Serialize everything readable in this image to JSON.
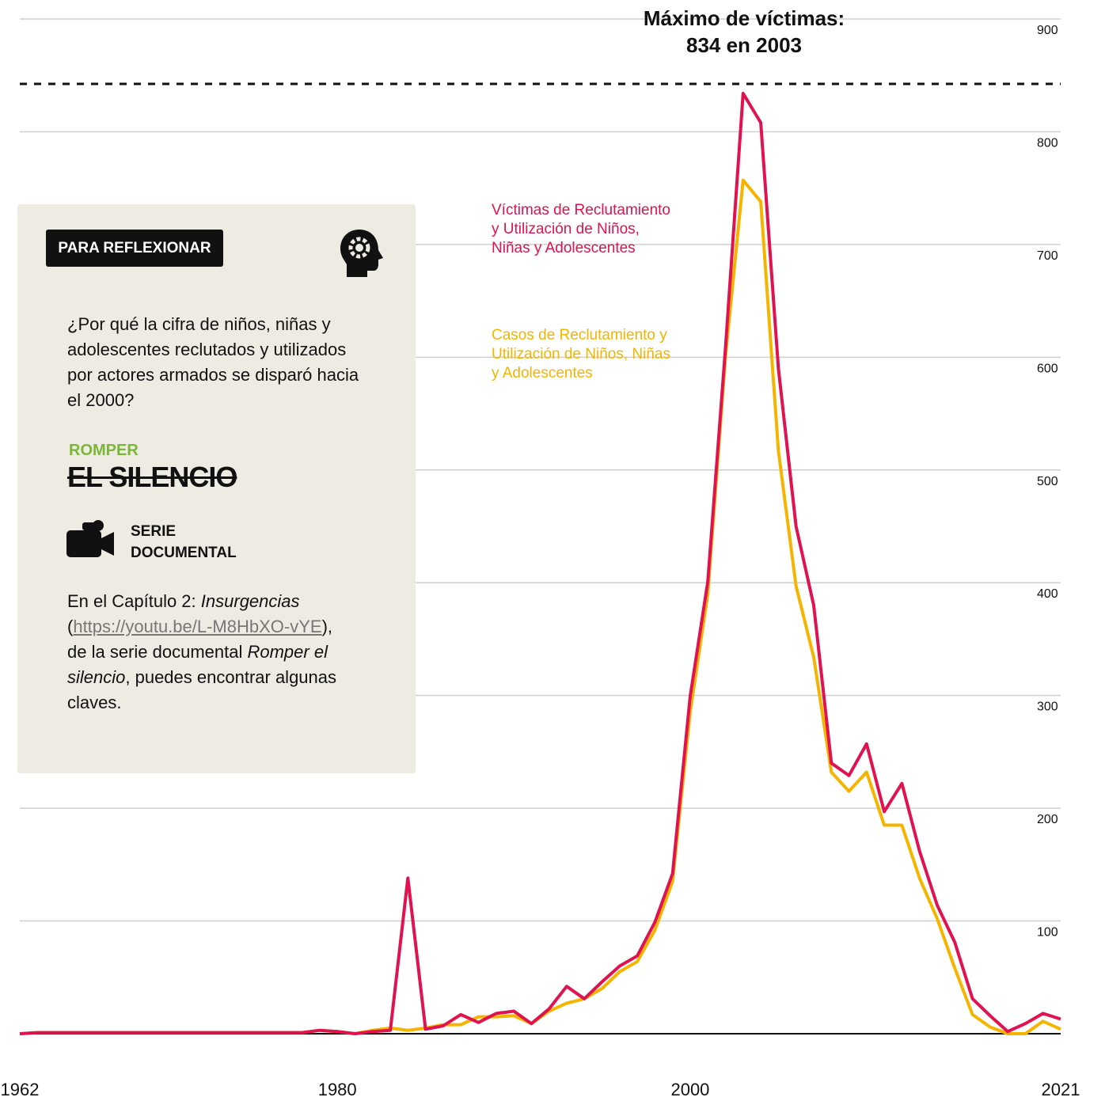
{
  "chart_data": {
    "type": "line",
    "annotation": "Máximo de víctimas: 834 en 2003",
    "x": [
      1962,
      1963,
      1964,
      1965,
      1966,
      1967,
      1968,
      1969,
      1970,
      1971,
      1972,
      1973,
      1974,
      1975,
      1976,
      1977,
      1978,
      1979,
      1980,
      1981,
      1982,
      1983,
      1984,
      1985,
      1986,
      1987,
      1988,
      1989,
      1990,
      1991,
      1992,
      1993,
      1994,
      1995,
      1996,
      1997,
      1998,
      1999,
      2000,
      2001,
      2002,
      2003,
      2004,
      2005,
      2006,
      2007,
      2008,
      2009,
      2010,
      2011,
      2012,
      2013,
      2014,
      2015,
      2016,
      2017,
      2018,
      2019,
      2020,
      2021
    ],
    "series": [
      {
        "name": "Víctimas de Reclutamiento y Utilización de Niños, Niñas y Adolescentes",
        "color": "#e0124f",
        "values": [
          0,
          1,
          1,
          1,
          1,
          1,
          1,
          1,
          1,
          1,
          1,
          1,
          1,
          1,
          1,
          1,
          1,
          3,
          2,
          0,
          2,
          3,
          138,
          4,
          7,
          17,
          10,
          18,
          20,
          9,
          22,
          42,
          31,
          46,
          60,
          69,
          99,
          142,
          299,
          401,
          608,
          834,
          808,
          590,
          450,
          380,
          240,
          229,
          257,
          197,
          222,
          162,
          114,
          81,
          31,
          16,
          2,
          9,
          18,
          13
        ]
      },
      {
        "name": "Casos de Reclutamiento y Utilización de Niños, Niñas y Adolescentes",
        "color": "#f5b400",
        "values": [
          0,
          1,
          1,
          1,
          1,
          1,
          1,
          1,
          1,
          1,
          1,
          1,
          1,
          1,
          1,
          1,
          1,
          3,
          2,
          0,
          3,
          5,
          3,
          5,
          8,
          8,
          15,
          15,
          16,
          9,
          20,
          27,
          31,
          40,
          55,
          64,
          92,
          135,
          285,
          390,
          600,
          757,
          738,
          517,
          397,
          334,
          232,
          215,
          232,
          185,
          185,
          138,
          102,
          58,
          17,
          6,
          0,
          0,
          11,
          4
        ]
      }
    ],
    "xlim": [
      1962,
      2021
    ],
    "xticks": [
      1962,
      1980,
      2000,
      2021
    ],
    "ylim": [
      0,
      900
    ],
    "yticks": [
      100,
      200,
      300,
      400,
      500,
      600,
      700,
      800,
      900
    ],
    "grid": true
  },
  "card": {
    "badge": "PARA REFLEXIONAR",
    "question": "¿Por qué la cifra de niños, niñas y adolescentes reclutados y utilizados por actores armados se disparó hacia el 2000?",
    "logo_top": "ROMPER",
    "logo_bottom": "EL SILENCIO",
    "serie": "SERIE DOCUMENTAL",
    "body": [
      "En el Capítulo 2: ",
      "Insurgencias",
      " (",
      "https://youtu.be/L-M8HbXO-vYE",
      "), de la serie documental ",
      "Romper el silencio",
      ", puedes encontrar algunas claves."
    ]
  }
}
